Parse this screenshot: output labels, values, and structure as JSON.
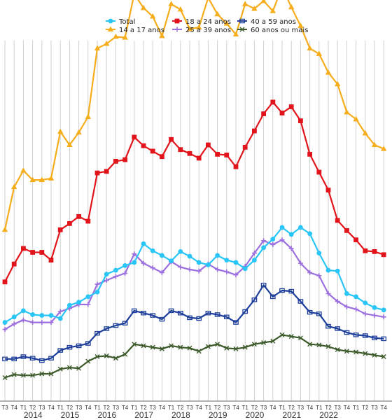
{
  "chart_data": {
    "type": "line",
    "title": "",
    "xlabel": "",
    "ylabel": "",
    "grid": "vertical",
    "legend_position": "top",
    "year_labels": [
      "2014",
      "2015",
      "2016",
      "2017",
      "2018",
      "2019",
      "2020",
      "2021",
      "2022"
    ],
    "x": [
      "2013T3",
      "2013T4",
      "2014T1",
      "2014T2",
      "2014T3",
      "2014T4",
      "2015T1",
      "2015T2",
      "2015T3",
      "2015T4",
      "2016T1",
      "2016T2",
      "2016T3",
      "2016T4",
      "2017T1",
      "2017T2",
      "2017T3",
      "2017T4",
      "2018T1",
      "2018T2",
      "2018T3",
      "2018T4",
      "2019T1",
      "2019T2",
      "2019T3",
      "2019T4",
      "2020T1",
      "2020T2",
      "2020T3",
      "2020T4",
      "2021T1",
      "2021T2",
      "2021T3",
      "2021T4",
      "2022T1",
      "2022T2",
      "2022T3",
      "2022T4",
      "2023T1",
      "2023T2",
      "2023T3",
      "2023T4"
    ],
    "ylim": [
      0,
      50
    ],
    "series": [
      {
        "name": "Total",
        "color": "#29c5f6",
        "marker": "circle",
        "values": [
          10.2,
          10.9,
          11.7,
          11.2,
          11.1,
          11.1,
          10.7,
          12.4,
          12.8,
          13.5,
          14.1,
          16.4,
          16.9,
          17.5,
          17.9,
          20.3,
          19.4,
          18.8,
          18.1,
          19.3,
          18.7,
          17.9,
          17.6,
          18.8,
          18.2,
          17.9,
          17.1,
          18.2,
          19.8,
          20.9,
          22.4,
          21.5,
          22.4,
          21.6,
          19.1,
          16.9,
          16.8,
          13.9,
          13.5,
          12.7,
          12.1,
          11.8
        ]
      },
      {
        "name": "14 a 17 anos",
        "color": "#f5ad1c",
        "marker": "triangle",
        "values": [
          22.1,
          27.6,
          29.7,
          28.5,
          28.5,
          28.7,
          34.7,
          33.0,
          34.6,
          36.6,
          45.4,
          46.0,
          46.9,
          46.8,
          52.4,
          50.6,
          49.5,
          47.0,
          51.1,
          50.4,
          47.9,
          48.1,
          51.9,
          49.8,
          48.6,
          47.2,
          51.1,
          50.5,
          51.5,
          50.2,
          53.3,
          50.7,
          48.3,
          45.4,
          44.7,
          42.3,
          40.8,
          37.2,
          36.3,
          34.5,
          33.0,
          32.5
        ]
      },
      {
        "name": "18 a 24 anos",
        "color": "#e2141b",
        "marker": "square",
        "values": [
          15.4,
          17.7,
          19.7,
          19.2,
          19.2,
          18.2,
          22.1,
          22.9,
          23.8,
          23.2,
          29.4,
          29.6,
          30.9,
          31.1,
          34.0,
          32.9,
          32.2,
          31.5,
          33.7,
          32.4,
          31.9,
          31.3,
          33.0,
          31.8,
          31.7,
          30.2,
          32.7,
          34.8,
          37.0,
          38.5,
          37.1,
          37.9,
          36.1,
          31.8,
          29.5,
          27.2,
          23.3,
          22.0,
          20.8,
          19.4,
          19.3,
          18.9
        ]
      },
      {
        "name": "25 a 39 anos",
        "color": "#9c6fde",
        "marker": "plus",
        "values": [
          9.3,
          10.0,
          10.5,
          10.2,
          10.2,
          10.2,
          11.6,
          12.0,
          12.5,
          12.5,
          15.1,
          15.6,
          16.1,
          16.5,
          19.0,
          17.8,
          17.2,
          16.6,
          18.0,
          17.3,
          17.0,
          16.8,
          17.7,
          17.0,
          16.7,
          16.3,
          17.4,
          19.1,
          20.7,
          20.2,
          20.8,
          19.7,
          17.8,
          16.6,
          16.2,
          13.9,
          12.9,
          12.2,
          11.9,
          11.3,
          11.1,
          10.9
        ]
      },
      {
        "name": "40 a 59 anos",
        "color": "#1d3f9a",
        "marker": "diamond",
        "values": [
          5.5,
          5.5,
          5.8,
          5.6,
          5.3,
          5.6,
          6.6,
          7.0,
          7.2,
          7.5,
          8.8,
          9.4,
          9.8,
          10.1,
          11.7,
          11.4,
          11.1,
          10.6,
          11.7,
          11.4,
          10.8,
          10.7,
          11.4,
          11.2,
          10.9,
          10.2,
          11.6,
          13.1,
          15.0,
          13.5,
          14.3,
          14.2,
          12.9,
          11.5,
          11.3,
          9.7,
          9.4,
          8.9,
          8.6,
          8.5,
          8.2,
          8.1
        ]
      },
      {
        "name": "60 anos ou mais",
        "color": "#3c5a2a",
        "marker": "cross",
        "values": [
          3.1,
          3.5,
          3.4,
          3.4,
          3.6,
          3.6,
          4.2,
          4.4,
          4.3,
          5.2,
          5.8,
          5.9,
          5.6,
          6.1,
          7.4,
          7.2,
          7.0,
          6.8,
          7.2,
          7.0,
          6.9,
          6.5,
          7.1,
          7.4,
          6.9,
          6.8,
          7.0,
          7.4,
          7.6,
          7.8,
          8.6,
          8.4,
          8.2,
          7.4,
          7.3,
          7.1,
          6.7,
          6.5,
          6.4,
          6.2,
          6.0,
          5.8
        ]
      }
    ]
  }
}
